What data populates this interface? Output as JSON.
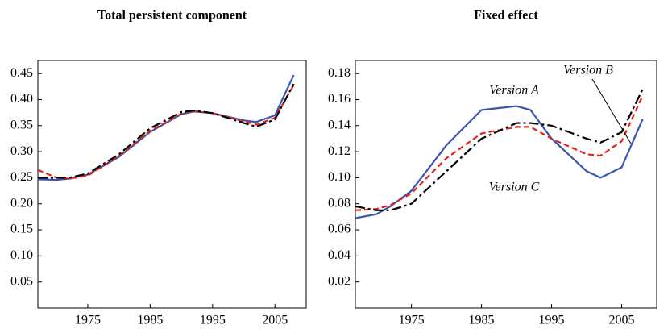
{
  "chart_data": [
    {
      "type": "line",
      "title": "Total persistent component",
      "x": [
        1967,
        1970,
        1972,
        1975,
        1980,
        1985,
        1990,
        1992,
        1995,
        2000,
        2002,
        2005,
        2008
      ],
      "xlim": [
        1967,
        2010
      ],
      "xticks": [
        1975,
        1985,
        1995,
        2005
      ],
      "ylim": [
        0,
        0.475
      ],
      "yticks": [
        0.05,
        {
          "value": 0.1,
          "label": "0.10"
        },
        0.15,
        {
          "value": 0.2,
          "label": "0.20"
        },
        0.25,
        {
          "value": 0.3,
          "label": "0.30"
        },
        0.35,
        {
          "value": 0.4,
          "label": "0.40"
        },
        0.45
      ],
      "series": [
        {
          "color": "#3a55b0",
          "style": "solid",
          "values": [
            0.247,
            0.246,
            0.248,
            0.256,
            0.29,
            0.338,
            0.372,
            0.377,
            0.374,
            0.36,
            0.357,
            0.37,
            0.447
          ]
        },
        {
          "color": "#e0241c",
          "style": "dashed",
          "values": [
            0.265,
            0.25,
            0.248,
            0.254,
            0.292,
            0.34,
            0.373,
            0.378,
            0.374,
            0.358,
            0.352,
            0.365,
            0.428
          ]
        },
        {
          "color": "#000000",
          "style": "dashdot",
          "values": [
            0.25,
            0.25,
            0.25,
            0.258,
            0.295,
            0.345,
            0.376,
            0.379,
            0.374,
            0.355,
            0.348,
            0.362,
            0.43
          ]
        }
      ]
    },
    {
      "type": "line",
      "title": "Fixed effect",
      "x": [
        1967,
        1970,
        1972,
        1975,
        1980,
        1985,
        1990,
        1992,
        1995,
        2000,
        2002,
        2005,
        2008
      ],
      "xlim": [
        1967,
        2010
      ],
      "xticks": [
        1975,
        1985,
        1995,
        2005
      ],
      "ylim": [
        0,
        0.19
      ],
      "yticks": [
        0.02,
        0.04,
        0.06,
        0.08,
        {
          "value": 0.1,
          "label": "0.10"
        },
        0.12,
        0.14,
        0.16,
        0.18
      ],
      "series": [
        {
          "name": "Version A",
          "color": "#3a55b0",
          "style": "solid",
          "values": [
            0.069,
            0.072,
            0.078,
            0.09,
            0.125,
            0.152,
            0.155,
            0.152,
            0.13,
            0.105,
            0.1,
            0.108,
            0.145
          ]
        },
        {
          "name": "Version B",
          "color": "#e0241c",
          "style": "dashed",
          "values": [
            0.075,
            0.076,
            0.079,
            0.088,
            0.115,
            0.134,
            0.139,
            0.139,
            0.13,
            0.118,
            0.117,
            0.128,
            0.163
          ]
        },
        {
          "name": "Version C",
          "color": "#000000",
          "style": "dashdot",
          "values": [
            0.078,
            0.075,
            0.075,
            0.08,
            0.105,
            0.13,
            0.142,
            0.142,
            0.14,
            0.13,
            0.127,
            0.135,
            0.168
          ]
        }
      ]
    }
  ]
}
